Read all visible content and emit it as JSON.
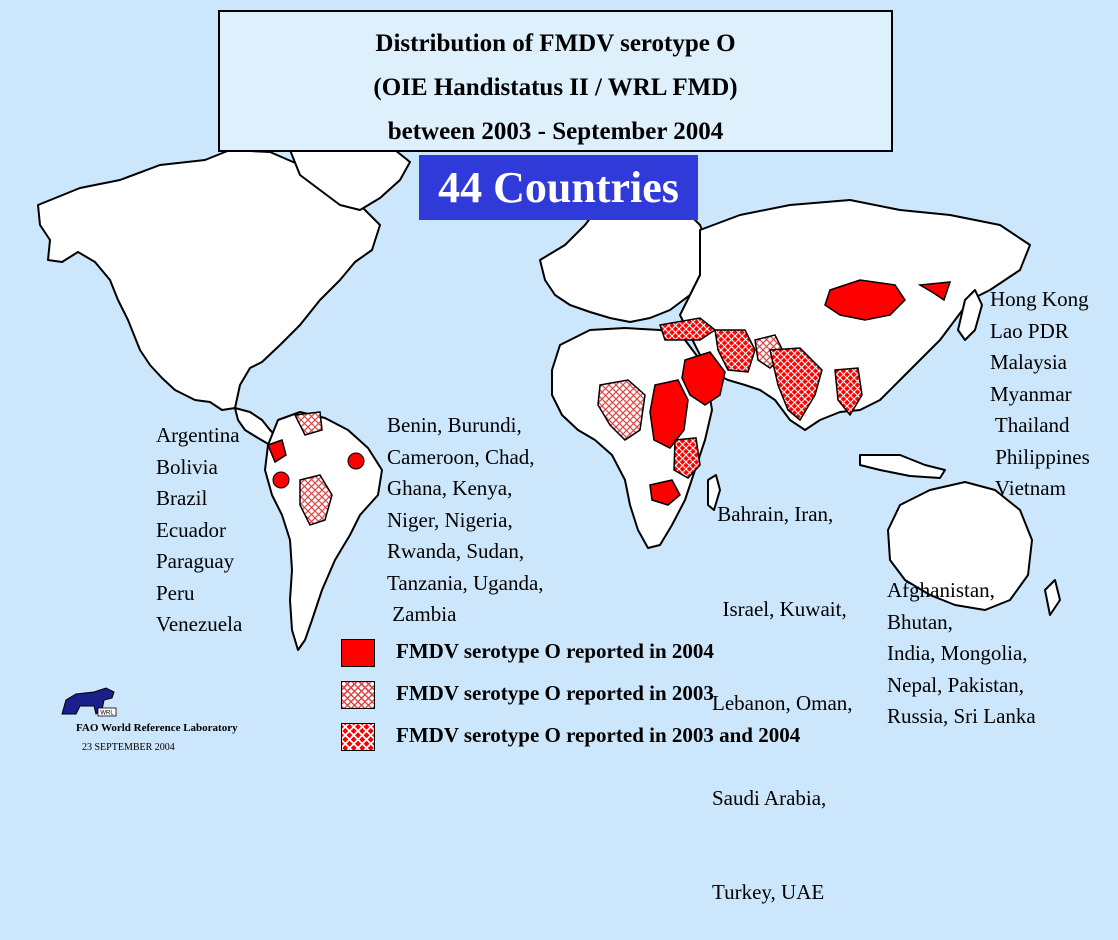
{
  "title": {
    "line1": "Distribution of FMDV serotype O",
    "line2": "(OIE Handistatus II / WRL FMD)",
    "line3": "between 2003 - September 2004"
  },
  "country_count": "44 Countries",
  "regions": {
    "south_america": [
      "Argentina",
      "Bolivia",
      "Brazil",
      "Ecuador",
      "Paraguay",
      "Peru",
      "Venezuela"
    ],
    "africa": [
      "Benin, Burundi,",
      "Cameroon, Chad,",
      "Ghana, Kenya,",
      "Niger, Nigeria,",
      "Rwanda, Sudan,",
      "Tanzania, Uganda,",
      " Zambia"
    ],
    "middle_east": [
      " Bahrain, Iran,",
      "  Israel, Kuwait,",
      "Lebanon, Oman,",
      "Saudi Arabia,",
      "Turkey, UAE"
    ],
    "south_central_asia": [
      "Afghanistan,",
      "Bhutan,",
      "India, Mongolia,",
      "Nepal, Pakistan,",
      "Russia, Sri Lanka"
    ],
    "east_asia": [
      "Hong Kong",
      "Lao PDR",
      "Malaysia",
      "Myanmar",
      " Thailand",
      " Philippines",
      " Vietnam"
    ]
  },
  "legend": [
    {
      "label": "FMDV serotype O reported in 2004",
      "pattern": "solid",
      "color": "#ff0000"
    },
    {
      "label": "FMDV serotype O reported in 2003",
      "pattern": "crosshatch-light",
      "color": "#e04444"
    },
    {
      "label": "FMDV serotype O reported in 2003 and 2004",
      "pattern": "crosshatch-dense",
      "color": "#ff0000"
    }
  ],
  "footer": {
    "lab_name": "FAO World Reference Laboratory",
    "date": "23 SEPTEMBER 2004",
    "logo_text": "WRL"
  },
  "colors": {
    "ocean": "#cce6fb",
    "land": "#ffffff",
    "reported_2004": "#ff0000",
    "count_box": "#2f3ad9",
    "title_box": "#dff0fd"
  }
}
